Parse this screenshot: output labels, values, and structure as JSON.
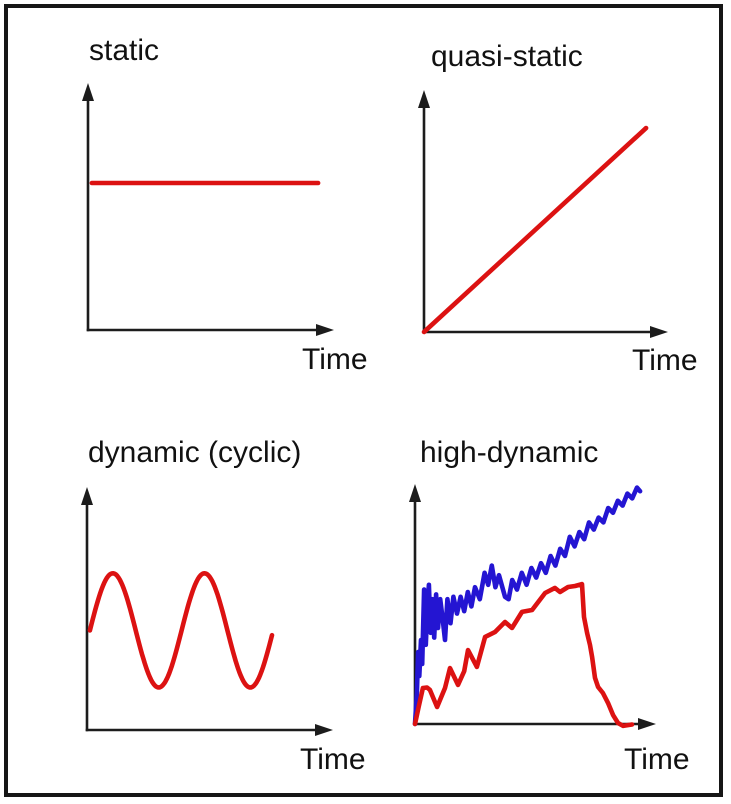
{
  "figure": {
    "background": "#ffffff",
    "border_color": "#161616",
    "axis_color": "#1c1c1c",
    "red": "#dc1212",
    "blue": "#2415d2"
  },
  "panels": [
    {
      "id": "static",
      "title": "static",
      "time_label": "Time",
      "curves": [
        {
          "name": "constant-load-line",
          "color": "#dc1212",
          "kind": "points",
          "points": [
            [
              0.016,
              0.6
            ],
            [
              0.943,
              0.6
            ]
          ]
        }
      ]
    },
    {
      "id": "quasi-static",
      "title": "quasi-static",
      "time_label": "Time",
      "curves": [
        {
          "name": "ramp-load-line",
          "color": "#dc1212",
          "kind": "points",
          "points": [
            [
              0.0,
              0.0
            ],
            [
              0.914,
              0.85
            ]
          ]
        }
      ]
    },
    {
      "id": "dynamic-cyclic",
      "title": "dynamic (cyclic)",
      "time_label": "Time",
      "curves": [
        {
          "name": "sine-load-curve",
          "color": "#dc1212",
          "kind": "sine",
          "x_start": 0.012,
          "x_end": 0.755,
          "midline": 0.41,
          "amplitude": 0.235,
          "period": 0.374
        }
      ]
    },
    {
      "id": "high-dynamic",
      "title": "high-dynamic",
      "time_label": "Time",
      "curves": [
        {
          "name": "noisy-rising-load-curve",
          "color": "#2415d2",
          "kind": "points",
          "points": [
            [
              0,
              0
            ],
            [
              0.008,
              0.13
            ],
            [
              0.013,
              0.3
            ],
            [
              0.018,
              0.2
            ],
            [
              0.025,
              0.35
            ],
            [
              0.03,
              0.25
            ],
            [
              0.038,
              0.56
            ],
            [
              0.045,
              0.33
            ],
            [
              0.052,
              0.5
            ],
            [
              0.058,
              0.58
            ],
            [
              0.065,
              0.38
            ],
            [
              0.072,
              0.52
            ],
            [
              0.08,
              0.36
            ],
            [
              0.088,
              0.54
            ],
            [
              0.096,
              0.4
            ],
            [
              0.105,
              0.52
            ],
            [
              0.115,
              0.44
            ],
            [
              0.125,
              0.35
            ],
            [
              0.135,
              0.52
            ],
            [
              0.148,
              0.42
            ],
            [
              0.16,
              0.53
            ],
            [
              0.175,
              0.46
            ],
            [
              0.19,
              0.53
            ],
            [
              0.205,
              0.47
            ],
            [
              0.22,
              0.55
            ],
            [
              0.235,
              0.49
            ],
            [
              0.25,
              0.57
            ],
            [
              0.27,
              0.52
            ],
            [
              0.29,
              0.63
            ],
            [
              0.305,
              0.58
            ],
            [
              0.32,
              0.66
            ],
            [
              0.335,
              0.57
            ],
            [
              0.35,
              0.62
            ],
            [
              0.375,
              0.53
            ],
            [
              0.39,
              0.52
            ],
            [
              0.405,
              0.6
            ],
            [
              0.425,
              0.56
            ],
            [
              0.445,
              0.63
            ],
            [
              0.465,
              0.58
            ],
            [
              0.485,
              0.65
            ],
            [
              0.505,
              0.61
            ],
            [
              0.525,
              0.67
            ],
            [
              0.545,
              0.63
            ],
            [
              0.565,
              0.7
            ],
            [
              0.585,
              0.66
            ],
            [
              0.605,
              0.73
            ],
            [
              0.625,
              0.7
            ],
            [
              0.645,
              0.78
            ],
            [
              0.665,
              0.74
            ],
            [
              0.685,
              0.8
            ],
            [
              0.705,
              0.77
            ],
            [
              0.725,
              0.84
            ],
            [
              0.745,
              0.81
            ],
            [
              0.765,
              0.86
            ],
            [
              0.785,
              0.84
            ],
            [
              0.805,
              0.9
            ],
            [
              0.825,
              0.88
            ],
            [
              0.845,
              0.93
            ],
            [
              0.865,
              0.91
            ],
            [
              0.885,
              0.96
            ],
            [
              0.905,
              0.94
            ],
            [
              0.925,
              0.985
            ],
            [
              0.938,
              0.97
            ]
          ]
        },
        {
          "name": "load-rise-and-failure-drop-curve",
          "color": "#dc1212",
          "kind": "points",
          "points": [
            [
              0,
              0
            ],
            [
              0.015,
              0.07
            ],
            [
              0.033,
              0.15
            ],
            [
              0.05,
              0.152
            ],
            [
              0.062,
              0.142
            ],
            [
              0.092,
              0.071
            ],
            [
              0.125,
              0.15
            ],
            [
              0.146,
              0.233
            ],
            [
              0.179,
              0.163
            ],
            [
              0.205,
              0.22
            ],
            [
              0.221,
              0.308
            ],
            [
              0.258,
              0.238
            ],
            [
              0.292,
              0.363
            ],
            [
              0.333,
              0.383
            ],
            [
              0.375,
              0.425
            ],
            [
              0.404,
              0.4
            ],
            [
              0.446,
              0.467
            ],
            [
              0.488,
              0.475
            ],
            [
              0.542,
              0.546
            ],
            [
              0.583,
              0.567
            ],
            [
              0.604,
              0.55
            ],
            [
              0.638,
              0.571
            ],
            [
              0.667,
              0.575
            ],
            [
              0.696,
              0.583
            ],
            [
              0.704,
              0.446
            ],
            [
              0.717,
              0.379
            ],
            [
              0.729,
              0.329
            ],
            [
              0.738,
              0.279
            ],
            [
              0.75,
              0.192
            ],
            [
              0.763,
              0.154
            ],
            [
              0.783,
              0.129
            ],
            [
              0.804,
              0.088
            ],
            [
              0.825,
              0.038
            ],
            [
              0.846,
              0.004
            ],
            [
              0.867,
              -0.008
            ],
            [
              0.904,
              -0.002
            ]
          ]
        }
      ]
    }
  ]
}
